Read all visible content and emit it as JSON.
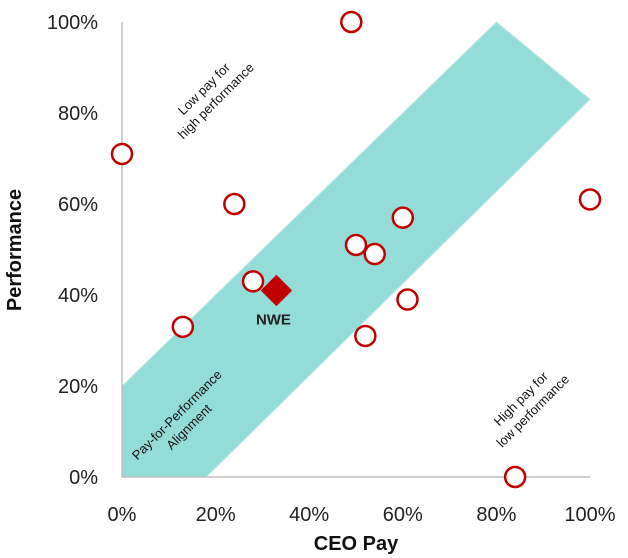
{
  "chart_data": {
    "type": "scatter",
    "title": "",
    "xlabel": "CEO Pay",
    "ylabel": "Performance",
    "xlim": [
      0,
      100
    ],
    "ylim": [
      0,
      100
    ],
    "x_ticks": [
      "0%",
      "20%",
      "40%",
      "60%",
      "80%",
      "100%"
    ],
    "y_ticks": [
      "0%",
      "20%",
      "40%",
      "60%",
      "80%",
      "100%"
    ],
    "grid": false,
    "alignment_band": {
      "label": "Pay-for-Performance Alignment",
      "lower_edge": [
        [
          18,
          0
        ],
        [
          100,
          83
        ]
      ],
      "upper_edge": [
        [
          0,
          20
        ],
        [
          80,
          100
        ]
      ],
      "color": "#93dcd8"
    },
    "annotations": {
      "top_left": "Low pay for high performance",
      "bottom_right": "High pay for low performance"
    },
    "series": [
      {
        "name": "",
        "marker": "open-circle",
        "color": "#c00000",
        "points": [
          {
            "x": 0,
            "y": 71
          },
          {
            "x": 49,
            "y": 100
          },
          {
            "x": 24,
            "y": 60
          },
          {
            "x": 28,
            "y": 43
          },
          {
            "x": 13,
            "y": 33
          },
          {
            "x": 50,
            "y": 51
          },
          {
            "x": 54,
            "y": 49
          },
          {
            "x": 60,
            "y": 57
          },
          {
            "x": 61,
            "y": 39
          },
          {
            "x": 52,
            "y": 31
          },
          {
            "x": 100,
            "y": 61
          },
          {
            "x": 84,
            "y": 0
          }
        ]
      },
      {
        "name": "NWE",
        "marker": "diamond",
        "color": "#c00000",
        "points": [
          {
            "x": 33,
            "y": 41
          }
        ]
      }
    ]
  }
}
